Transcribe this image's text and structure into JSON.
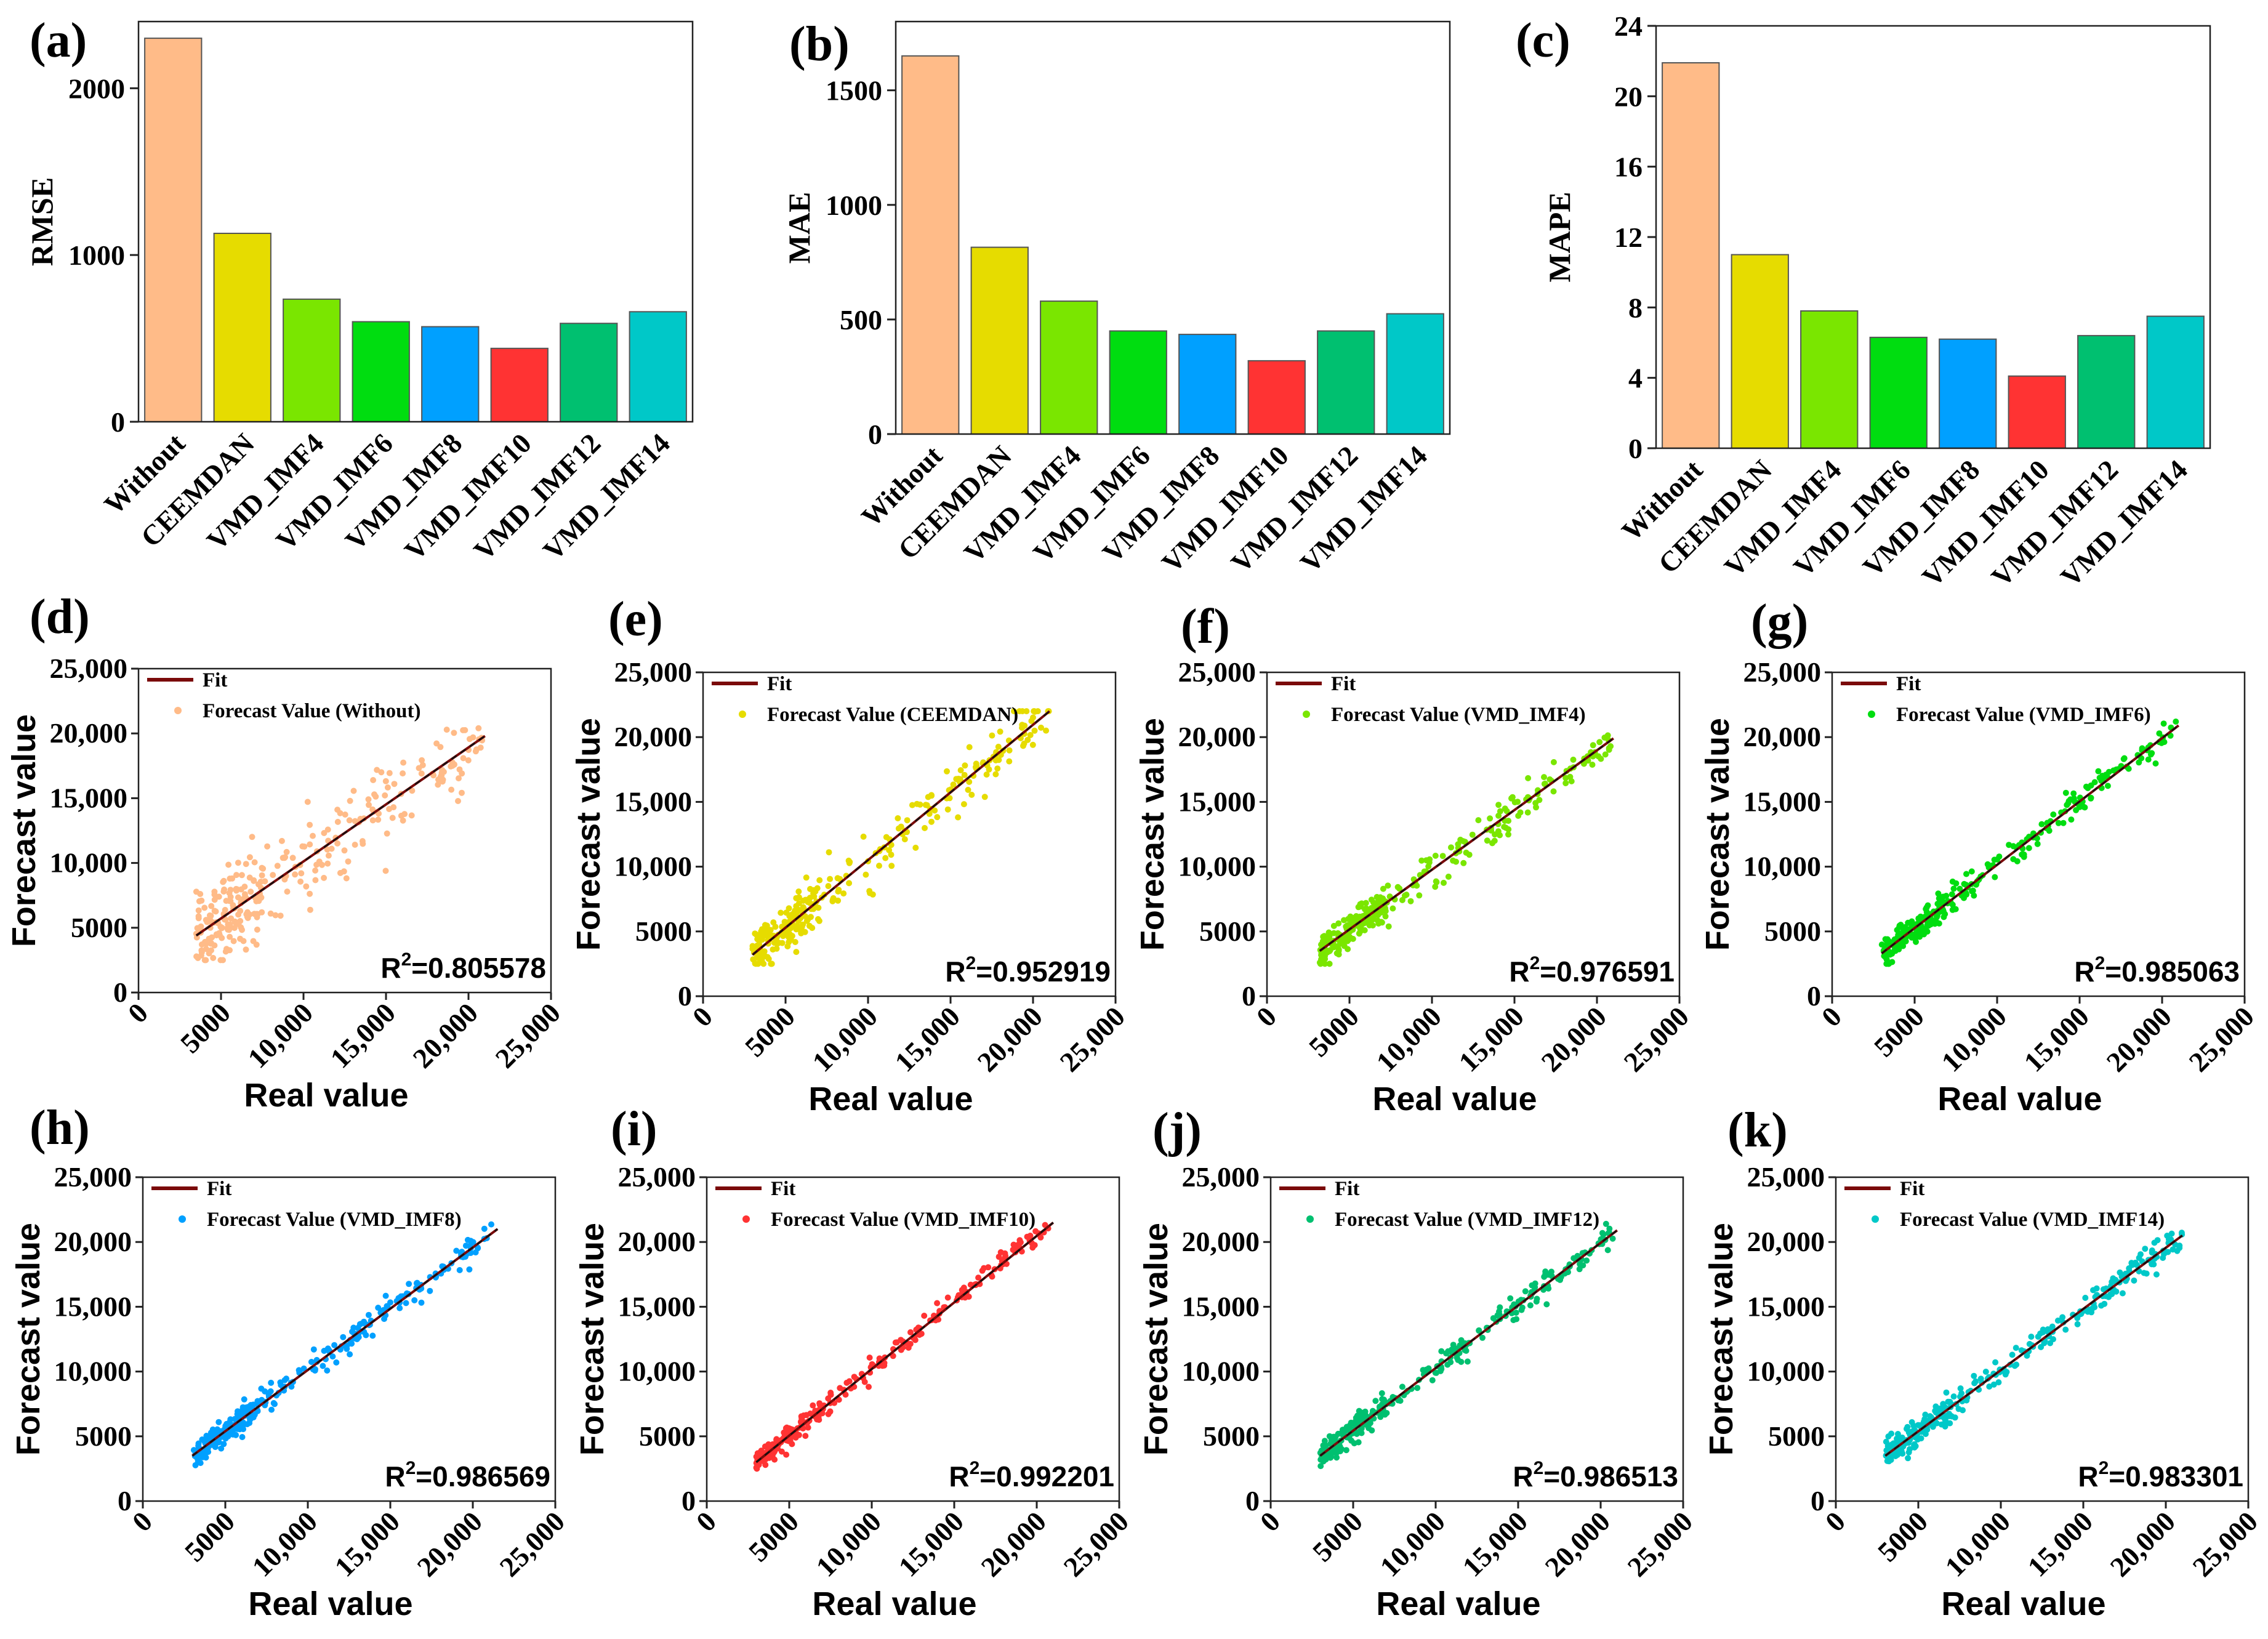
{
  "chart_data": [
    {
      "id": "a",
      "type": "bar",
      "panel_label": "(a)",
      "ylabel": "RMSE",
      "ylim": [
        0,
        2400
      ],
      "yticks": [
        {
          "v": 0,
          "label": "0"
        },
        {
          "v": 1000,
          "label": "1000"
        },
        {
          "v": 2000,
          "label": "2000"
        }
      ],
      "categories": [
        "Without",
        "CEEMDAN",
        "VMD_IMF4",
        "VMD_IMF6",
        "VMD_IMF8",
        "VMD_IMF10",
        "VMD_IMF12",
        "VMD_IMF14"
      ],
      "values": [
        2300,
        1130,
        735,
        600,
        570,
        440,
        590,
        660
      ],
      "colors": [
        "#FFBB88",
        "#E6DC00",
        "#7AE600",
        "#00DD10",
        "#00A0FF",
        "#FF3333",
        "#00C070",
        "#00C8C8"
      ]
    },
    {
      "id": "b",
      "type": "bar",
      "panel_label": "(b)",
      "ylabel": "MAE",
      "ylim": [
        0,
        1800
      ],
      "yticks": [
        {
          "v": 0,
          "label": "0"
        },
        {
          "v": 500,
          "label": "500"
        },
        {
          "v": 1000,
          "label": "1000"
        },
        {
          "v": 1500,
          "label": "1500"
        }
      ],
      "categories": [
        "Without",
        "CEEMDAN",
        "VMD_IMF4",
        "VMD_IMF6",
        "VMD_IMF8",
        "VMD_IMF10",
        "VMD_IMF12",
        "VMD_IMF14"
      ],
      "values": [
        1650,
        815,
        580,
        450,
        435,
        320,
        450,
        525
      ],
      "colors": [
        "#FFBB88",
        "#E6DC00",
        "#7AE600",
        "#00DD10",
        "#00A0FF",
        "#FF3333",
        "#00C070",
        "#00C8C8"
      ]
    },
    {
      "id": "c",
      "type": "bar",
      "panel_label": "(c)",
      "ylabel": "MAPE",
      "ylim": [
        0,
        24
      ],
      "yticks": [
        {
          "v": 0,
          "label": "0"
        },
        {
          "v": 4,
          "label": "4"
        },
        {
          "v": 8,
          "label": "8"
        },
        {
          "v": 12,
          "label": "12"
        },
        {
          "v": 16,
          "label": "16"
        },
        {
          "v": 20,
          "label": "20"
        },
        {
          "v": 24,
          "label": "24"
        }
      ],
      "categories": [
        "Without",
        "CEEMDAN",
        "VMD_IMF4",
        "VMD_IMF6",
        "VMD_IMF8",
        "VMD_IMF10",
        "VMD_IMF12",
        "VMD_IMF14"
      ],
      "values": [
        21.9,
        11.0,
        7.8,
        6.3,
        6.2,
        4.1,
        6.4,
        7.5
      ],
      "colors": [
        "#FFBB88",
        "#E6DC00",
        "#7AE600",
        "#00DD10",
        "#00A0FF",
        "#FF3333",
        "#00C070",
        "#00C8C8"
      ]
    },
    {
      "id": "d",
      "type": "scatter",
      "panel_label": "(d)",
      "xlabel": "Real value",
      "ylabel": "Forecast value",
      "xlim": [
        0,
        25000
      ],
      "ylim": [
        0,
        25000
      ],
      "xticks": [
        "0",
        "5000",
        "10,000",
        "15,000",
        "20,000",
        "25,000"
      ],
      "yticks": [
        "0",
        "5000",
        "10,000",
        "15,000",
        "20,000",
        "25,000"
      ],
      "legend_fit": "Fit",
      "legend_points": "Forecast Value (Without)",
      "color": "#FFBB88",
      "r2_prefix": "R",
      "r2_sup": "2",
      "r2_value": "=0.805578",
      "fit_line": [
        [
          3500,
          4400
        ],
        [
          21000,
          19800
        ]
      ],
      "spread": 1700,
      "seed": 11
    },
    {
      "id": "e",
      "type": "scatter",
      "panel_label": "(e)",
      "xlabel": "Real value",
      "ylabel": "Forecast value",
      "xlim": [
        0,
        25000
      ],
      "ylim": [
        0,
        25000
      ],
      "xticks": [
        "0",
        "5000",
        "10,000",
        "15,000",
        "20,000",
        "25,000"
      ],
      "yticks": [
        "0",
        "5000",
        "10,000",
        "15,000",
        "20,000",
        "25,000"
      ],
      "legend_fit": "Fit",
      "legend_points": "Forecast Value (CEEMDAN)",
      "color": "#E6DC00",
      "r2_prefix": "R",
      "r2_sup": "2",
      "r2_value": "=0.952919",
      "fit_line": [
        [
          3000,
          3200
        ],
        [
          21000,
          22000
        ]
      ],
      "spread": 1000,
      "seed": 23
    },
    {
      "id": "f",
      "type": "scatter",
      "panel_label": "(f)",
      "xlabel": "Real value",
      "ylabel": "Forecast value",
      "xlim": [
        0,
        25000
      ],
      "ylim": [
        0,
        25000
      ],
      "xticks": [
        "0",
        "5000",
        "10,000",
        "15,000",
        "20,000",
        "25,000"
      ],
      "yticks": [
        "0",
        "5000",
        "10,000",
        "15,000",
        "20,000",
        "25,000"
      ],
      "legend_fit": "Fit",
      "legend_points": "Forecast Value (VMD_IMF4)",
      "color": "#7AE600",
      "r2_prefix": "R",
      "r2_sup": "2",
      "r2_value": "=0.976591",
      "fit_line": [
        [
          3200,
          3500
        ],
        [
          21000,
          19900
        ]
      ],
      "spread": 700,
      "seed": 37
    },
    {
      "id": "g",
      "type": "scatter",
      "panel_label": "(g)",
      "xlabel": "Real value",
      "ylabel": "Forecast value",
      "xlim": [
        0,
        25000
      ],
      "ylim": [
        0,
        25000
      ],
      "xticks": [
        "0",
        "5000",
        "10,000",
        "15,000",
        "20,000",
        "25,000"
      ],
      "yticks": [
        "0",
        "5000",
        "10,000",
        "15,000",
        "20,000",
        "25,000"
      ],
      "legend_fit": "Fit",
      "legend_points": "Forecast Value (VMD_IMF6)",
      "color": "#00DD10",
      "r2_prefix": "R",
      "r2_sup": "2",
      "r2_value": "=0.985063",
      "fit_line": [
        [
          3000,
          3300
        ],
        [
          21000,
          20900
        ]
      ],
      "spread": 550,
      "seed": 41
    },
    {
      "id": "h",
      "type": "scatter",
      "panel_label": "(h)",
      "xlabel": "Real value",
      "ylabel": "Forecast value",
      "xlim": [
        0,
        25000
      ],
      "ylim": [
        0,
        25000
      ],
      "xticks": [
        "0",
        "5000",
        "10,000",
        "15,000",
        "20,000",
        "25,000"
      ],
      "yticks": [
        "0",
        "5000",
        "10,000",
        "15,000",
        "20,000",
        "25,000"
      ],
      "legend_fit": "Fit",
      "legend_points": "Forecast Value (VMD_IMF8)",
      "color": "#00A0FF",
      "r2_prefix": "R",
      "r2_sup": "2",
      "r2_value": "=0.986569",
      "fit_line": [
        [
          3000,
          3500
        ],
        [
          21500,
          21000
        ]
      ],
      "spread": 500,
      "seed": 53
    },
    {
      "id": "i",
      "type": "scatter",
      "panel_label": "(i)",
      "xlabel": "Real value",
      "ylabel": "Forecast value",
      "xlim": [
        0,
        25000
      ],
      "ylim": [
        0,
        25000
      ],
      "xticks": [
        "0",
        "5000",
        "10,000",
        "15,000",
        "20,000",
        "25,000"
      ],
      "yticks": [
        "0",
        "5000",
        "10,000",
        "15,000",
        "20,000",
        "25,000"
      ],
      "legend_fit": "Fit",
      "legend_points": "Forecast Value (VMD_IMF10)",
      "color": "#FF3333",
      "r2_prefix": "R",
      "r2_sup": "2",
      "r2_value": "=0.992201",
      "fit_line": [
        [
          3000,
          3000
        ],
        [
          21000,
          21500
        ]
      ],
      "spread": 380,
      "seed": 67
    },
    {
      "id": "j",
      "type": "scatter",
      "panel_label": "(j)",
      "xlabel": "Real value",
      "ylabel": "Forecast value",
      "xlim": [
        0,
        25000
      ],
      "ylim": [
        0,
        25000
      ],
      "xticks": [
        "0",
        "5000",
        "10,000",
        "15,000",
        "20,000",
        "25,000"
      ],
      "yticks": [
        "0",
        "5000",
        "10,000",
        "15,000",
        "20,000",
        "25,000"
      ],
      "legend_fit": "Fit",
      "legend_points": "Forecast Value (VMD_IMF12)",
      "color": "#00C070",
      "r2_prefix": "R",
      "r2_sup": "2",
      "r2_value": "=0.986513",
      "fit_line": [
        [
          3000,
          3500
        ],
        [
          21000,
          20900
        ]
      ],
      "spread": 500,
      "seed": 71
    },
    {
      "id": "k",
      "type": "scatter",
      "panel_label": "(k)",
      "xlabel": "Real value",
      "ylabel": "Forecast value",
      "xlim": [
        0,
        25000
      ],
      "ylim": [
        0,
        25000
      ],
      "xticks": [
        "0",
        "5000",
        "10,000",
        "15,000",
        "20,000",
        "25,000"
      ],
      "yticks": [
        "0",
        "5000",
        "10,000",
        "15,000",
        "20,000",
        "25,000"
      ],
      "legend_fit": "Fit",
      "legend_points": "Forecast Value (VMD_IMF14)",
      "color": "#00C8C8",
      "r2_prefix": "R",
      "r2_sup": "2",
      "r2_value": "=0.983301",
      "fit_line": [
        [
          3000,
          3500
        ],
        [
          21000,
          20500
        ]
      ],
      "spread": 550,
      "seed": 83
    }
  ]
}
